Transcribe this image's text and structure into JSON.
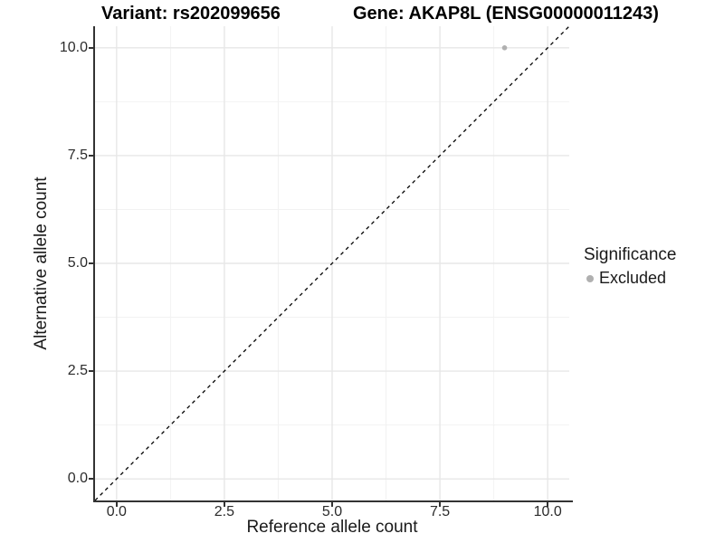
{
  "titles": {
    "variant": "Variant: rs202099656",
    "gene": "Gene: AKAP8L (ENSG00000011243)"
  },
  "axes": {
    "x": {
      "title": "Reference allele count"
    },
    "y": {
      "title": "Alternative allele count"
    }
  },
  "legend": {
    "title": "Significance",
    "items": [
      {
        "label": "Excluded",
        "color": "#b0b0b0"
      }
    ]
  },
  "chart_data": {
    "type": "scatter",
    "title": "Variant: rs202099656    Gene: AKAP8L (ENSG00000011243)",
    "xlabel": "Reference allele count",
    "ylabel": "Alternative allele count",
    "xlim": [
      -0.5,
      10.5
    ],
    "ylim": [
      -0.5,
      10.5
    ],
    "xticks": [
      0,
      2.5,
      5,
      7.5,
      10
    ],
    "yticks": [
      0,
      2.5,
      5,
      7.5,
      10
    ],
    "xtick_labels": [
      "0.0",
      "2.5",
      "5.0",
      "7.5",
      "10.0"
    ],
    "ytick_labels": [
      "0.0",
      "2.5",
      "5.0",
      "7.5",
      "10.0"
    ],
    "minor_ticks": [
      1.25,
      3.75,
      6.25,
      8.75
    ],
    "grid": true,
    "legend_position": "right",
    "series": [
      {
        "name": "Excluded",
        "color": "#b0b0b0",
        "points": [
          {
            "x": 9,
            "y": 10
          }
        ]
      }
    ],
    "reference_line": {
      "type": "identity",
      "style": "dashed",
      "from": [
        -0.5,
        -0.5
      ],
      "to": [
        10.5,
        10.5
      ],
      "color": "#000000"
    }
  },
  "style": {
    "grid_major_color": "#e7e7e7",
    "grid_minor_color": "#f2f2f2",
    "axis_line_color": "#333333",
    "point_color": "#b0b0b0",
    "background": "#ffffff"
  }
}
